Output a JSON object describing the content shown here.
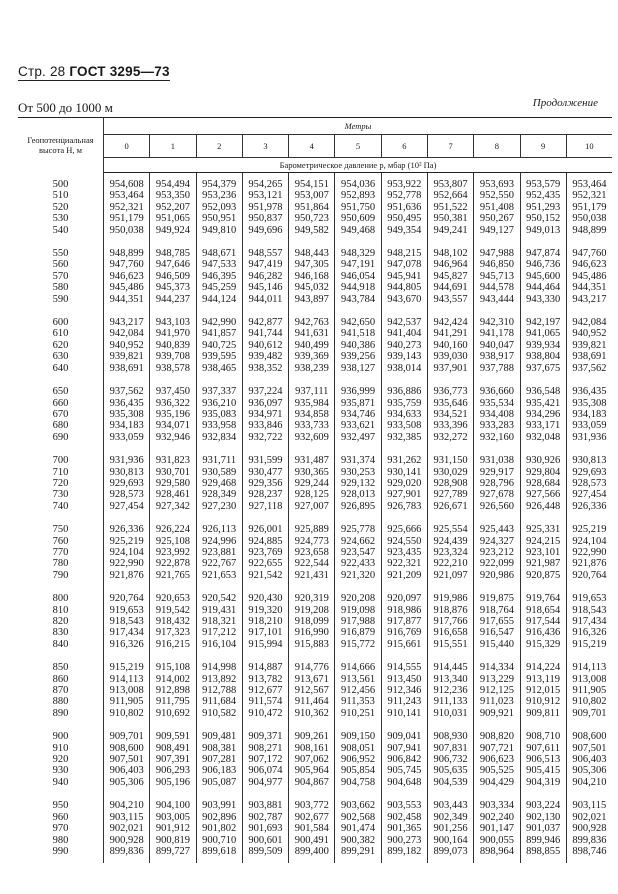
{
  "page_header": {
    "page": "Стр. 28",
    "standard": "ГОСТ 3295—73"
  },
  "range_title": "От 500 до 1000 м",
  "continuation": "Продолжение",
  "table": {
    "row_header": "Геопотенциальная высота H, м",
    "group_header": "Метры",
    "columns": [
      "0",
      "1",
      "2",
      "3",
      "4",
      "5",
      "6",
      "7",
      "8",
      "9",
      "10"
    ],
    "quantity": "Барометрическое давление p, мбар (10² Па)",
    "rows": [
      {
        "h": "500",
        "v": [
          "954,608",
          "954,494",
          "954,379",
          "954,265",
          "954,151",
          "954,036",
          "953,922",
          "953,807",
          "953,693",
          "953,579",
          "953,464"
        ]
      },
      {
        "h": "510",
        "v": [
          "953,464",
          "953,350",
          "953,236",
          "953,121",
          "953,007",
          "952,893",
          "952,778",
          "952,664",
          "952,550",
          "952,435",
          "952,321"
        ]
      },
      {
        "h": "520",
        "v": [
          "952,321",
          "952,207",
          "952,093",
          "951,978",
          "951,864",
          "951,750",
          "951,636",
          "951,522",
          "951,408",
          "951,293",
          "951,179"
        ]
      },
      {
        "h": "530",
        "v": [
          "951,179",
          "951,065",
          "950,951",
          "950,837",
          "950,723",
          "950,609",
          "950,495",
          "950,381",
          "950,267",
          "950,152",
          "950,038"
        ]
      },
      {
        "h": "540",
        "v": [
          "950,038",
          "949,924",
          "949,810",
          "949,696",
          "949,582",
          "949,468",
          "949,354",
          "949,241",
          "949,127",
          "949,013",
          "948,899"
        ]
      },
      {
        "h": "550",
        "v": [
          "948,899",
          "948,785",
          "948,671",
          "948,557",
          "948,443",
          "948,329",
          "948,215",
          "948,102",
          "947,988",
          "947,874",
          "947,760"
        ]
      },
      {
        "h": "560",
        "v": [
          "947,760",
          "947,646",
          "947,533",
          "947,419",
          "947,305",
          "947,191",
          "947,078",
          "946,964",
          "946,850",
          "946,736",
          "946,623"
        ]
      },
      {
        "h": "570",
        "v": [
          "946,623",
          "946,509",
          "946,395",
          "946,282",
          "946,168",
          "946,054",
          "945,941",
          "945,827",
          "945,713",
          "945,600",
          "945,486"
        ]
      },
      {
        "h": "580",
        "v": [
          "945,486",
          "945,373",
          "945,259",
          "945,146",
          "945,032",
          "944,918",
          "944,805",
          "944,691",
          "944,578",
          "944,464",
          "944,351"
        ]
      },
      {
        "h": "590",
        "v": [
          "944,351",
          "944,237",
          "944,124",
          "944,011",
          "943,897",
          "943,784",
          "943,670",
          "943,557",
          "943,444",
          "943,330",
          "943,217"
        ]
      },
      {
        "h": "600",
        "v": [
          "943,217",
          "943,103",
          "942,990",
          "942,877",
          "942,763",
          "942,650",
          "942,537",
          "942,424",
          "942,310",
          "942,197",
          "942,084"
        ]
      },
      {
        "h": "610",
        "v": [
          "942,084",
          "941,970",
          "941,857",
          "941,744",
          "941,631",
          "941,518",
          "941,404",
          "941,291",
          "941,178",
          "941,065",
          "940,952"
        ]
      },
      {
        "h": "620",
        "v": [
          "940,952",
          "940,839",
          "940,725",
          "940,612",
          "940,499",
          "940,386",
          "940,273",
          "940,160",
          "940,047",
          "939,934",
          "939,821"
        ]
      },
      {
        "h": "630",
        "v": [
          "939,821",
          "939,708",
          "939,595",
          "939,482",
          "939,369",
          "939,256",
          "939,143",
          "939,030",
          "938,917",
          "938,804",
          "938,691"
        ]
      },
      {
        "h": "640",
        "v": [
          "938,691",
          "938,578",
          "938,465",
          "938,352",
          "938,239",
          "938,127",
          "938,014",
          "937,901",
          "937,788",
          "937,675",
          "937,562"
        ]
      },
      {
        "h": "650",
        "v": [
          "937,562",
          "937,450",
          "937,337",
          "937,224",
          "937,111",
          "936,999",
          "936,886",
          "936,773",
          "936,660",
          "936,548",
          "936,435"
        ]
      },
      {
        "h": "660",
        "v": [
          "936,435",
          "936,322",
          "936,210",
          "936,097",
          "935,984",
          "935,871",
          "935,759",
          "935,646",
          "935,534",
          "935,421",
          "935,308"
        ]
      },
      {
        "h": "670",
        "v": [
          "935,308",
          "935,196",
          "935,083",
          "934,971",
          "934,858",
          "934,746",
          "934,633",
          "934,521",
          "934,408",
          "934,296",
          "934,183"
        ]
      },
      {
        "h": "680",
        "v": [
          "934,183",
          "934,071",
          "933,958",
          "933,846",
          "933,733",
          "933,621",
          "933,508",
          "933,396",
          "933,283",
          "933,171",
          "933,059"
        ]
      },
      {
        "h": "690",
        "v": [
          "933,059",
          "932,946",
          "932,834",
          "932,722",
          "932,609",
          "932,497",
          "932,385",
          "932,272",
          "932,160",
          "932,048",
          "931,936"
        ]
      },
      {
        "h": "700",
        "v": [
          "931,936",
          "931,823",
          "931,711",
          "931,599",
          "931,487",
          "931,374",
          "931,262",
          "931,150",
          "931,038",
          "930,926",
          "930,813"
        ]
      },
      {
        "h": "710",
        "v": [
          "930,813",
          "930,701",
          "930,589",
          "930,477",
          "930,365",
          "930,253",
          "930,141",
          "930,029",
          "929,917",
          "929,804",
          "929,693"
        ]
      },
      {
        "h": "720",
        "v": [
          "929,693",
          "929,580",
          "929,468",
          "929,356",
          "929,244",
          "929,132",
          "929,020",
          "928,908",
          "928,796",
          "928,684",
          "928,573"
        ]
      },
      {
        "h": "730",
        "v": [
          "928,573",
          "928,461",
          "928,349",
          "928,237",
          "928,125",
          "928,013",
          "927,901",
          "927,789",
          "927,678",
          "927,566",
          "927,454"
        ]
      },
      {
        "h": "740",
        "v": [
          "927,454",
          "927,342",
          "927,230",
          "927,118",
          "927,007",
          "926,895",
          "926,783",
          "926,671",
          "926,560",
          "926,448",
          "926,336"
        ]
      },
      {
        "h": "750",
        "v": [
          "926,336",
          "926,224",
          "926,113",
          "926,001",
          "925,889",
          "925,778",
          "925,666",
          "925,554",
          "925,443",
          "925,331",
          "925,219"
        ]
      },
      {
        "h": "760",
        "v": [
          "925,219",
          "925,108",
          "924,996",
          "924,885",
          "924,773",
          "924,662",
          "924,550",
          "924,439",
          "924,327",
          "924,215",
          "924,104"
        ]
      },
      {
        "h": "770",
        "v": [
          "924,104",
          "923,992",
          "923,881",
          "923,769",
          "923,658",
          "923,547",
          "923,435",
          "923,324",
          "923,212",
          "923,101",
          "922,990"
        ]
      },
      {
        "h": "780",
        "v": [
          "922,990",
          "922,878",
          "922,767",
          "922,655",
          "922,544",
          "922,433",
          "922,321",
          "922,210",
          "922,099",
          "921,987",
          "921,876"
        ]
      },
      {
        "h": "790",
        "v": [
          "921,876",
          "921,765",
          "921,653",
          "921,542",
          "921,431",
          "921,320",
          "921,209",
          "921,097",
          "920,986",
          "920,875",
          "920,764"
        ]
      },
      {
        "h": "800",
        "v": [
          "920,764",
          "920,653",
          "920,542",
          "920,430",
          "920,319",
          "920,208",
          "920,097",
          "919,986",
          "919,875",
          "919,764",
          "919,653"
        ]
      },
      {
        "h": "810",
        "v": [
          "919,653",
          "919,542",
          "919,431",
          "919,320",
          "919,208",
          "919,098",
          "918,986",
          "918,876",
          "918,764",
          "918,654",
          "918,543"
        ]
      },
      {
        "h": "820",
        "v": [
          "918,543",
          "918,432",
          "918,321",
          "918,210",
          "918,099",
          "917,988",
          "917,877",
          "917,766",
          "917,655",
          "917,544",
          "917,434"
        ]
      },
      {
        "h": "830",
        "v": [
          "917,434",
          "917,323",
          "917,212",
          "917,101",
          "916,990",
          "916,879",
          "916,769",
          "916,658",
          "916,547",
          "916,436",
          "916,326"
        ]
      },
      {
        "h": "840",
        "v": [
          "916,326",
          "916,215",
          "916,104",
          "915,994",
          "915,883",
          "915,772",
          "915,661",
          "915,551",
          "915,440",
          "915,329",
          "915,219"
        ]
      },
      {
        "h": "850",
        "v": [
          "915,219",
          "915,108",
          "914,998",
          "914,887",
          "914,776",
          "914,666",
          "914,555",
          "914,445",
          "914,334",
          "914,224",
          "914,113"
        ]
      },
      {
        "h": "860",
        "v": [
          "914,113",
          "914,002",
          "913,892",
          "913,782",
          "913,671",
          "913,561",
          "913,450",
          "913,340",
          "913,229",
          "913,119",
          "913,008"
        ]
      },
      {
        "h": "870",
        "v": [
          "913,008",
          "912,898",
          "912,788",
          "912,677",
          "912,567",
          "912,456",
          "912,346",
          "912,236",
          "912,125",
          "912,015",
          "911,905"
        ]
      },
      {
        "h": "880",
        "v": [
          "911,905",
          "911,795",
          "911,684",
          "911,574",
          "911,464",
          "911,353",
          "911,243",
          "911,133",
          "911,023",
          "910,912",
          "910,802"
        ]
      },
      {
        "h": "890",
        "v": [
          "910,802",
          "910,692",
          "910,582",
          "910,472",
          "910,362",
          "910,251",
          "910,141",
          "910,031",
          "909,921",
          "909,811",
          "909,701"
        ]
      },
      {
        "h": "900",
        "v": [
          "909,701",
          "909,591",
          "909,481",
          "909,371",
          "909,261",
          "909,150",
          "909,041",
          "908,930",
          "908,820",
          "908,710",
          "908,600"
        ]
      },
      {
        "h": "910",
        "v": [
          "908,600",
          "908,491",
          "908,381",
          "908,271",
          "908,161",
          "908,051",
          "907,941",
          "907,831",
          "907,721",
          "907,611",
          "907,501"
        ]
      },
      {
        "h": "920",
        "v": [
          "907,501",
          "907,391",
          "907,281",
          "907,172",
          "907,062",
          "906,952",
          "906,842",
          "906,732",
          "906,623",
          "906,513",
          "906,403"
        ]
      },
      {
        "h": "930",
        "v": [
          "906,403",
          "906,293",
          "906,183",
          "906,074",
          "905,964",
          "905,854",
          "905,745",
          "905,635",
          "905,525",
          "905,415",
          "905,306"
        ]
      },
      {
        "h": "940",
        "v": [
          "905,306",
          "905,196",
          "905,087",
          "904,977",
          "904,867",
          "904,758",
          "904,648",
          "904,539",
          "904,429",
          "904,319",
          "904,210"
        ]
      },
      {
        "h": "950",
        "v": [
          "904,210",
          "904,100",
          "903,991",
          "903,881",
          "903,772",
          "903,662",
          "903,553",
          "903,443",
          "903,334",
          "903,224",
          "903,115"
        ]
      },
      {
        "h": "960",
        "v": [
          "903,115",
          "903,005",
          "902,896",
          "902,787",
          "902,677",
          "902,568",
          "902,458",
          "902,349",
          "902,240",
          "902,130",
          "902,021"
        ]
      },
      {
        "h": "970",
        "v": [
          "902,021",
          "901,912",
          "901,802",
          "901,693",
          "901,584",
          "901,474",
          "901,365",
          "901,256",
          "901,147",
          "901,037",
          "900,928"
        ]
      },
      {
        "h": "980",
        "v": [
          "900,928",
          "900,819",
          "900,710",
          "900,601",
          "900,491",
          "900,382",
          "900,273",
          "900,164",
          "900,055",
          "899,946",
          "899,836"
        ]
      },
      {
        "h": "990",
        "v": [
          "899,836",
          "899,727",
          "899,618",
          "899,509",
          "899,400",
          "899,291",
          "899,182",
          "899,073",
          "898,964",
          "898,855",
          "898,746"
        ]
      }
    ]
  }
}
